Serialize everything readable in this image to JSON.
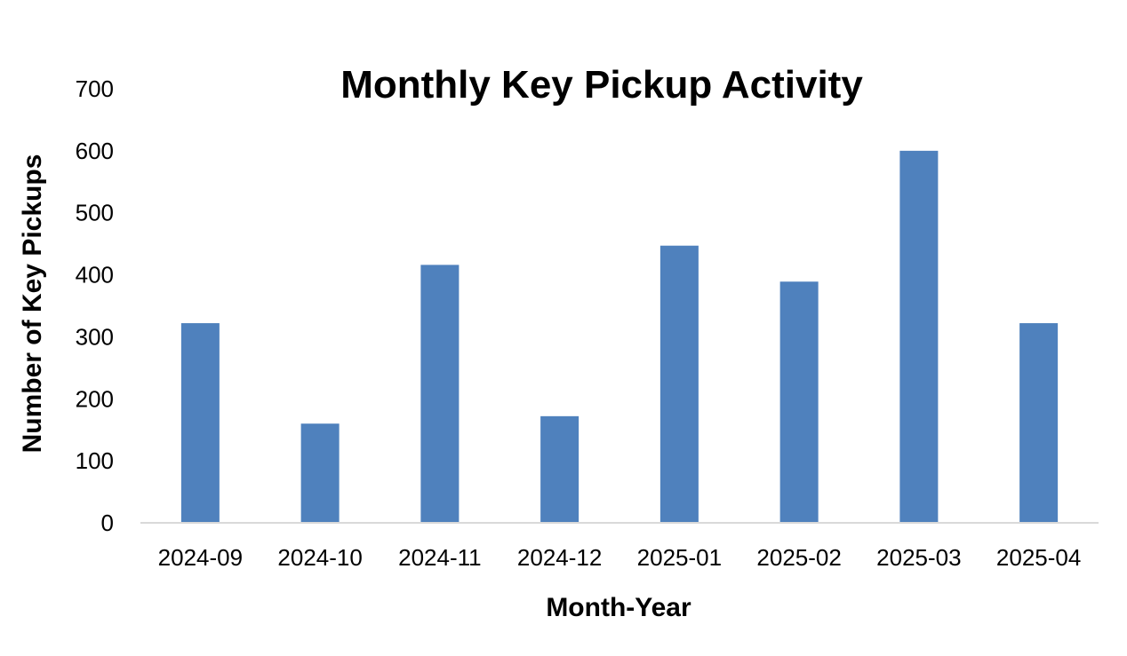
{
  "chart_data": {
    "type": "bar",
    "title": "Monthly Key Pickup Activity",
    "xlabel": "Month-Year",
    "ylabel": "Number of Key Pickups",
    "categories": [
      "2024-09",
      "2024-10",
      "2024-11",
      "2024-12",
      "2025-01",
      "2025-02",
      "2025-03",
      "2025-04"
    ],
    "values": [
      322,
      160,
      416,
      172,
      447,
      389,
      600,
      322
    ],
    "ylim": [
      0,
      700
    ],
    "yticks": [
      0,
      100,
      200,
      300,
      400,
      500,
      600,
      700
    ],
    "grid": false,
    "legend": "none",
    "bar_color": "#4F81BD",
    "axis_color": "#D9D9D9"
  }
}
